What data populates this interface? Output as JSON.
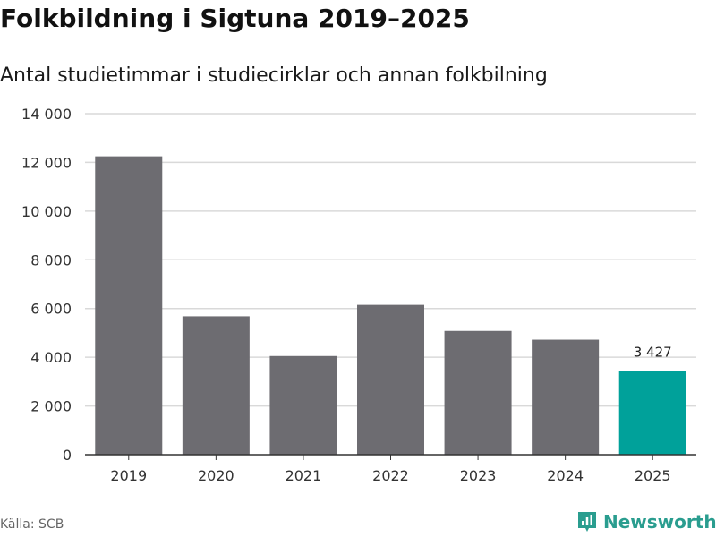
{
  "chart_data": {
    "type": "bar",
    "title": "Folkbildning i Sigtuna 2019–2025",
    "subtitle": "Antal studietimmar i studiecirklar och annan folkbilning",
    "categories": [
      "2019",
      "2020",
      "2021",
      "2022",
      "2023",
      "2024",
      "2025"
    ],
    "values": [
      12250,
      5680,
      4050,
      6150,
      5080,
      4720,
      3427
    ],
    "highlight_index": 6,
    "data_labels": [
      {
        "index": 6,
        "text": "3 427"
      }
    ],
    "yticks": [
      {
        "value": 0,
        "label": "0"
      },
      {
        "value": 2000,
        "label": "2 000"
      },
      {
        "value": 4000,
        "label": "4 000"
      },
      {
        "value": 6000,
        "label": "6 000"
      },
      {
        "value": 8000,
        "label": "8 000"
      },
      {
        "value": 10000,
        "label": "10 000"
      },
      {
        "value": 12000,
        "label": "12 000"
      },
      {
        "value": 14000,
        "label": "14 000"
      }
    ],
    "ylim": [
      0,
      14000
    ],
    "xlabel": "",
    "ylabel": "",
    "grid": true,
    "colors": {
      "bar": "#6d6c71",
      "highlight": "#00a19a",
      "grid": "#d9d9d9",
      "axis": "#333333",
      "tick_text": "#333333"
    }
  },
  "footer": {
    "source": "Källa: SCB",
    "brand": "Newsworthy",
    "brand_icon": "newsworthy-logo-icon",
    "brand_color": "#2a9d8f"
  }
}
